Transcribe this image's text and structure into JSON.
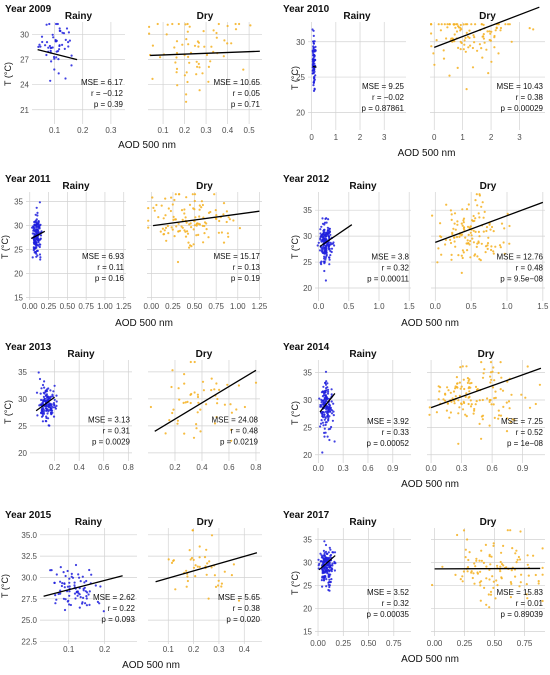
{
  "figure": {
    "x_axis_label": "AOD 500 nm",
    "y_axis_label": "T (°C)",
    "facets": [
      "Rainy",
      "Dry"
    ]
  },
  "colors": {
    "rainy": "#1f1fdd",
    "dry": "#f5b020",
    "grid": "#d2d2d2",
    "fit": "#000000"
  },
  "chart_data": [
    {
      "type": "scatter",
      "title": "Year 2009",
      "ylim": [
        19.3,
        31.5
      ],
      "yticks": [
        "21",
        "24",
        "27",
        "30"
      ],
      "ytick_values": [
        21,
        24,
        27,
        30
      ],
      "panels": [
        {
          "name": "Rainy",
          "xlim": [
            0.02,
            0.35
          ],
          "xticks": [
            "0.1",
            "0.2",
            "0.3"
          ],
          "xtick_values": [
            0.1,
            0.2,
            0.3
          ],
          "fit": [
            [
              0.04,
              28.2
            ],
            [
              0.18,
              27.0
            ]
          ],
          "stats": {
            "mse": "MSE = 6.17",
            "r": "r = −0.12",
            "p": "p = 0.39"
          }
        },
        {
          "name": "Dry",
          "xlim": [
            0.03,
            0.56
          ],
          "xticks": [
            "0.1",
            "0.2",
            "0.3",
            "0.4",
            "0.5"
          ],
          "xtick_values": [
            0.1,
            0.2,
            0.3,
            0.4,
            0.5
          ],
          "fit": [
            [
              0.04,
              27.5
            ],
            [
              0.55,
              28.0
            ]
          ],
          "stats": {
            "mse": "MSE = 10.65",
            "r": "r = 0.05",
            "p": "p = 0.71"
          }
        }
      ]
    },
    {
      "type": "scatter",
      "title": "Year 2010",
      "ylim": [
        17.5,
        32.8
      ],
      "yticks": [
        "20",
        "25",
        "30"
      ],
      "ytick_values": [
        20,
        25,
        30
      ],
      "panels": [
        {
          "name": "Rainy",
          "xlim": [
            -0.15,
            3.9
          ],
          "xticks": [
            "0",
            "1",
            "2",
            "3"
          ],
          "xtick_values": [
            0,
            1,
            2,
            3
          ],
          "fit": [
            [
              0.05,
              26.5
            ],
            [
              0.2,
              26.4
            ]
          ],
          "stats": {
            "mse": "MSE = 9.25",
            "r": "r = −0.02",
            "p": "p = 0.87861"
          }
        },
        {
          "name": "Dry",
          "xlim": [
            -0.15,
            3.9
          ],
          "xticks": [
            "0",
            "1",
            "2",
            "3"
          ],
          "xtick_values": [
            0,
            1,
            2,
            3
          ],
          "fit": [
            [
              0.0,
              29.2
            ],
            [
              3.7,
              34.9
            ]
          ],
          "stats": {
            "mse": "MSE = 10.43",
            "r": "r = 0.38",
            "p": "p = 0.00029"
          }
        }
      ]
    },
    {
      "type": "scatter",
      "title": "Year 2011",
      "ylim": [
        14.5,
        37
      ],
      "yticks": [
        "15",
        "20",
        "25",
        "30",
        "35"
      ],
      "ytick_values": [
        15,
        20,
        25,
        30,
        35
      ],
      "panels": [
        {
          "name": "Rainy",
          "xlim": [
            -0.05,
            1.28
          ],
          "xticks": [
            "0.00",
            "0.25",
            "0.50",
            "0.75",
            "1.00",
            "1.25"
          ],
          "xtick_values": [
            0,
            0.25,
            0.5,
            0.75,
            1.0,
            1.25
          ],
          "fit": [
            [
              0.02,
              27.3
            ],
            [
              0.2,
              28.8
            ]
          ],
          "stats": {
            "mse": "MSE = 6.93",
            "r": "r = 0.11",
            "p": "p = 0.16"
          }
        },
        {
          "name": "Dry",
          "xlim": [
            -0.05,
            1.28
          ],
          "xticks": [
            "0.00",
            "0.25",
            "0.50",
            "0.75",
            "1.00",
            "1.25"
          ],
          "xtick_values": [
            0,
            0.25,
            0.5,
            0.75,
            1.0,
            1.25
          ],
          "fit": [
            [
              0.02,
              30.0
            ],
            [
              1.25,
              33.0
            ]
          ],
          "stats": {
            "mse": "MSE = 15.17",
            "r": "r = 0.13",
            "p": "p = 0.19"
          }
        }
      ]
    },
    {
      "type": "scatter",
      "title": "Year 2012",
      "ylim": [
        17.5,
        38.5
      ],
      "yticks": [
        "20",
        "25",
        "30",
        "35"
      ],
      "ytick_values": [
        20,
        25,
        30,
        35
      ],
      "panels": [
        {
          "name": "Rainy",
          "xlim": [
            -0.06,
            1.53
          ],
          "xticks": [
            "0.0",
            "0.5",
            "1.0",
            "1.5"
          ],
          "xtick_values": [
            0,
            0.5,
            1.0,
            1.5
          ],
          "fit": [
            [
              0.02,
              28.0
            ],
            [
              0.55,
              32.2
            ]
          ],
          "stats": {
            "mse": "MSE = 3.8",
            "r": "r = 0.32",
            "p": "p = 0.00011"
          }
        },
        {
          "name": "Dry",
          "xlim": [
            -0.06,
            1.53
          ],
          "xticks": [
            "0.0",
            "0.5",
            "1.0",
            "1.5"
          ],
          "xtick_values": [
            0,
            0.5,
            1.0,
            1.5
          ],
          "fit": [
            [
              0.0,
              28.8
            ],
            [
              1.5,
              36.5
            ]
          ],
          "stats": {
            "mse": "MSE = 12.76",
            "r": "r = 0.48",
            "p": "p = 9.5e−08"
          }
        }
      ]
    },
    {
      "type": "scatter",
      "title": "Year 2013",
      "ylim": [
        18.5,
        37.2
      ],
      "yticks": [
        "20",
        "25",
        "30",
        "35"
      ],
      "ytick_values": [
        20,
        25,
        30,
        35
      ],
      "panels": [
        {
          "name": "Rainy",
          "xlim": [
            0.0,
            0.83
          ],
          "xticks": [
            "0.2",
            "0.4",
            "0.6",
            "0.8"
          ],
          "xtick_values": [
            0.2,
            0.4,
            0.6,
            0.8
          ],
          "fit": [
            [
              0.05,
              27.8
            ],
            [
              0.2,
              30.3
            ]
          ],
          "stats": {
            "mse": "MSE = 3.13",
            "r": "r = 0.31",
            "p": "p = 0.0029"
          }
        },
        {
          "name": "Dry",
          "xlim": [
            0.0,
            0.83
          ],
          "xticks": [
            "0.2",
            "0.4",
            "0.6",
            "0.8"
          ],
          "xtick_values": [
            0.2,
            0.4,
            0.6,
            0.8
          ],
          "fit": [
            [
              0.05,
              24.0
            ],
            [
              0.8,
              35.3
            ]
          ],
          "stats": {
            "mse": "MSE = 24.08",
            "r": "r = 0.48",
            "p": "p = 0.0219"
          }
        }
      ]
    },
    {
      "type": "scatter",
      "title": "Year 2014",
      "ylim": [
        18.5,
        37.3
      ],
      "yticks": [
        "20",
        "25",
        "30",
        "35"
      ],
      "ytick_values": [
        20,
        25,
        30,
        35
      ],
      "panels": [
        {
          "name": "Rainy",
          "xlim": [
            -0.04,
            1.12
          ],
          "xticks": [
            "0.0",
            "0.3",
            "0.6",
            "0.9"
          ],
          "xtick_values": [
            0,
            0.3,
            0.6,
            0.9
          ],
          "fit": [
            [
              0.02,
              27.8
            ],
            [
              0.2,
              31.2
            ]
          ],
          "stats": {
            "mse": "MSE = 3.92",
            "r": "r = 0.33",
            "p": "p = 0.00052"
          }
        },
        {
          "name": "Dry",
          "xlim": [
            -0.04,
            1.12
          ],
          "xticks": [
            "0.0",
            "0.3",
            "0.6",
            "0.9"
          ],
          "xtick_values": [
            0,
            0.3,
            0.6,
            0.9
          ],
          "fit": [
            [
              0.0,
              28.6
            ],
            [
              1.08,
              35.8
            ]
          ],
          "stats": {
            "mse": "MSE = 7.25",
            "r": "r = 0.52",
            "p": "p = 1e−08"
          }
        }
      ]
    },
    {
      "type": "scatter",
      "title": "Year 2015",
      "ylim": [
        22.2,
        35.8
      ],
      "yticks": [
        "22.5",
        "25.0",
        "27.5",
        "30.0",
        "32.5",
        "35.0"
      ],
      "ytick_values": [
        22.5,
        25,
        27.5,
        30,
        32.5,
        35
      ],
      "panels": [
        {
          "name": "Rainy",
          "xlim": [
            0.02,
            0.29
          ],
          "xticks": [
            "0.1",
            "0.2"
          ],
          "xtick_values": [
            0.1,
            0.2
          ],
          "fit": [
            [
              0.03,
              27.8
            ],
            [
              0.25,
              30.2
            ]
          ],
          "stats": {
            "mse": "MSE = 2.62",
            "r": "r = 0.22",
            "p": "p = 0.093"
          }
        },
        {
          "name": "Dry",
          "xlim": [
            0.02,
            0.47
          ],
          "xticks": [
            "0.1",
            "0.2",
            "0.3",
            "0.4"
          ],
          "xtick_values": [
            0.1,
            0.2,
            0.3,
            0.4
          ],
          "fit": [
            [
              0.05,
              29.5
            ],
            [
              0.45,
              32.9
            ]
          ],
          "stats": {
            "mse": "MSE = 5.65",
            "r": "r = 0.38",
            "p": "p = 0.020"
          }
        }
      ]
    },
    {
      "type": "scatter",
      "title": "Year 2017",
      "ylim": [
        14,
        37.5
      ],
      "yticks": [
        "15",
        "20",
        "25",
        "30",
        "35"
      ],
      "ytick_values": [
        15,
        20,
        25,
        30,
        35
      ],
      "panels": [
        {
          "name": "Rainy",
          "xlim": [
            -0.03,
            0.92
          ],
          "xticks": [
            "0.00",
            "0.25",
            "0.50",
            "0.75"
          ],
          "xtick_values": [
            0,
            0.25,
            0.5,
            0.75
          ],
          "fit": [
            [
              0.01,
              28.4
            ],
            [
              0.17,
              31.5
            ]
          ],
          "stats": {
            "mse": "MSE = 3.52",
            "r": "r = 0.32",
            "p": "p = 0.00035"
          }
        },
        {
          "name": "Dry",
          "xlim": [
            -0.03,
            0.92
          ],
          "xticks": [
            "0.00",
            "0.25",
            "0.50",
            "0.75"
          ],
          "xtick_values": [
            0,
            0.25,
            0.5,
            0.75
          ],
          "fit": [
            [
              0.0,
              28.6
            ],
            [
              0.88,
              28.7
            ]
          ],
          "stats": {
            "mse": "MSE = 15.83",
            "r": "r = 0.01",
            "p": "p = 0.89039"
          }
        }
      ]
    }
  ]
}
